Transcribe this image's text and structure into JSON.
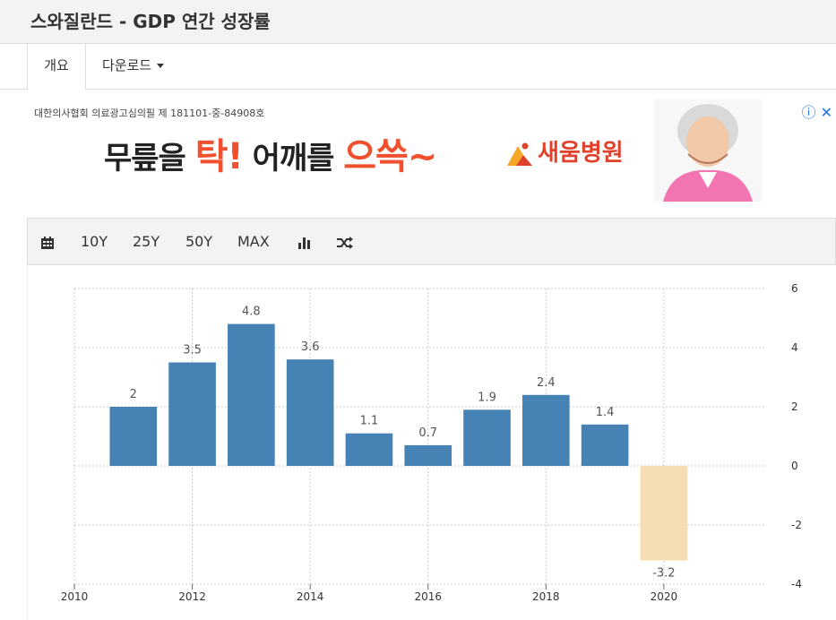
{
  "page": {
    "title": "스와질란드 - GDP 연간 성장률"
  },
  "tabs": {
    "overview": "개요",
    "download": "다운로드"
  },
  "ad": {
    "notice": "대한의사협회 의료광고심의필 제 181101-중-84908호",
    "slogan_part1": "무릎을 ",
    "slogan_accent1": "탁!",
    "slogan_part2": " 어깨를 ",
    "slogan_accent2": "으쓱~",
    "brand": "새움병원",
    "info_icon": "info-icon",
    "close_icon": "close-icon"
  },
  "toolbar": {
    "calendar_icon": "calendar-icon",
    "range_10y": "10Y",
    "range_25y": "25Y",
    "range_50y": "50Y",
    "range_max": "MAX",
    "bar_chart_icon": "bar-chart-icon",
    "shuffle_icon": "shuffle-icon"
  },
  "chart_data": {
    "type": "bar",
    "title": "",
    "xlabel": "",
    "ylabel": "",
    "categories": [
      "2011",
      "2012",
      "2013",
      "2014",
      "2015",
      "2016",
      "2017",
      "2018",
      "2019",
      "2020"
    ],
    "values": [
      2,
      3.5,
      4.8,
      3.6,
      1.1,
      0.7,
      1.9,
      2.4,
      1.4,
      -3.2
    ],
    "data_labels": [
      "2",
      "3.5",
      "4.8",
      "3.6",
      "1.1",
      "0.7",
      "1.9",
      "2.4",
      "1.4",
      "-3.2"
    ],
    "x_ticks": [
      "2010",
      "2012",
      "2014",
      "2016",
      "2018",
      "2020"
    ],
    "x_tick_values": [
      2010,
      2012,
      2014,
      2016,
      2018,
      2020
    ],
    "xlim": [
      2010,
      2021.4
    ],
    "y_ticks": [
      "6",
      "4",
      "2",
      "0",
      "-2",
      "-4"
    ],
    "y_tick_values": [
      6,
      4,
      2,
      0,
      -2,
      -4
    ],
    "ylim": [
      -4,
      6
    ],
    "y_axis_side": "right",
    "grid": true,
    "colors": {
      "positive": "#4682b4",
      "negative": "#f5deb3",
      "grid": "#cccccc"
    }
  }
}
